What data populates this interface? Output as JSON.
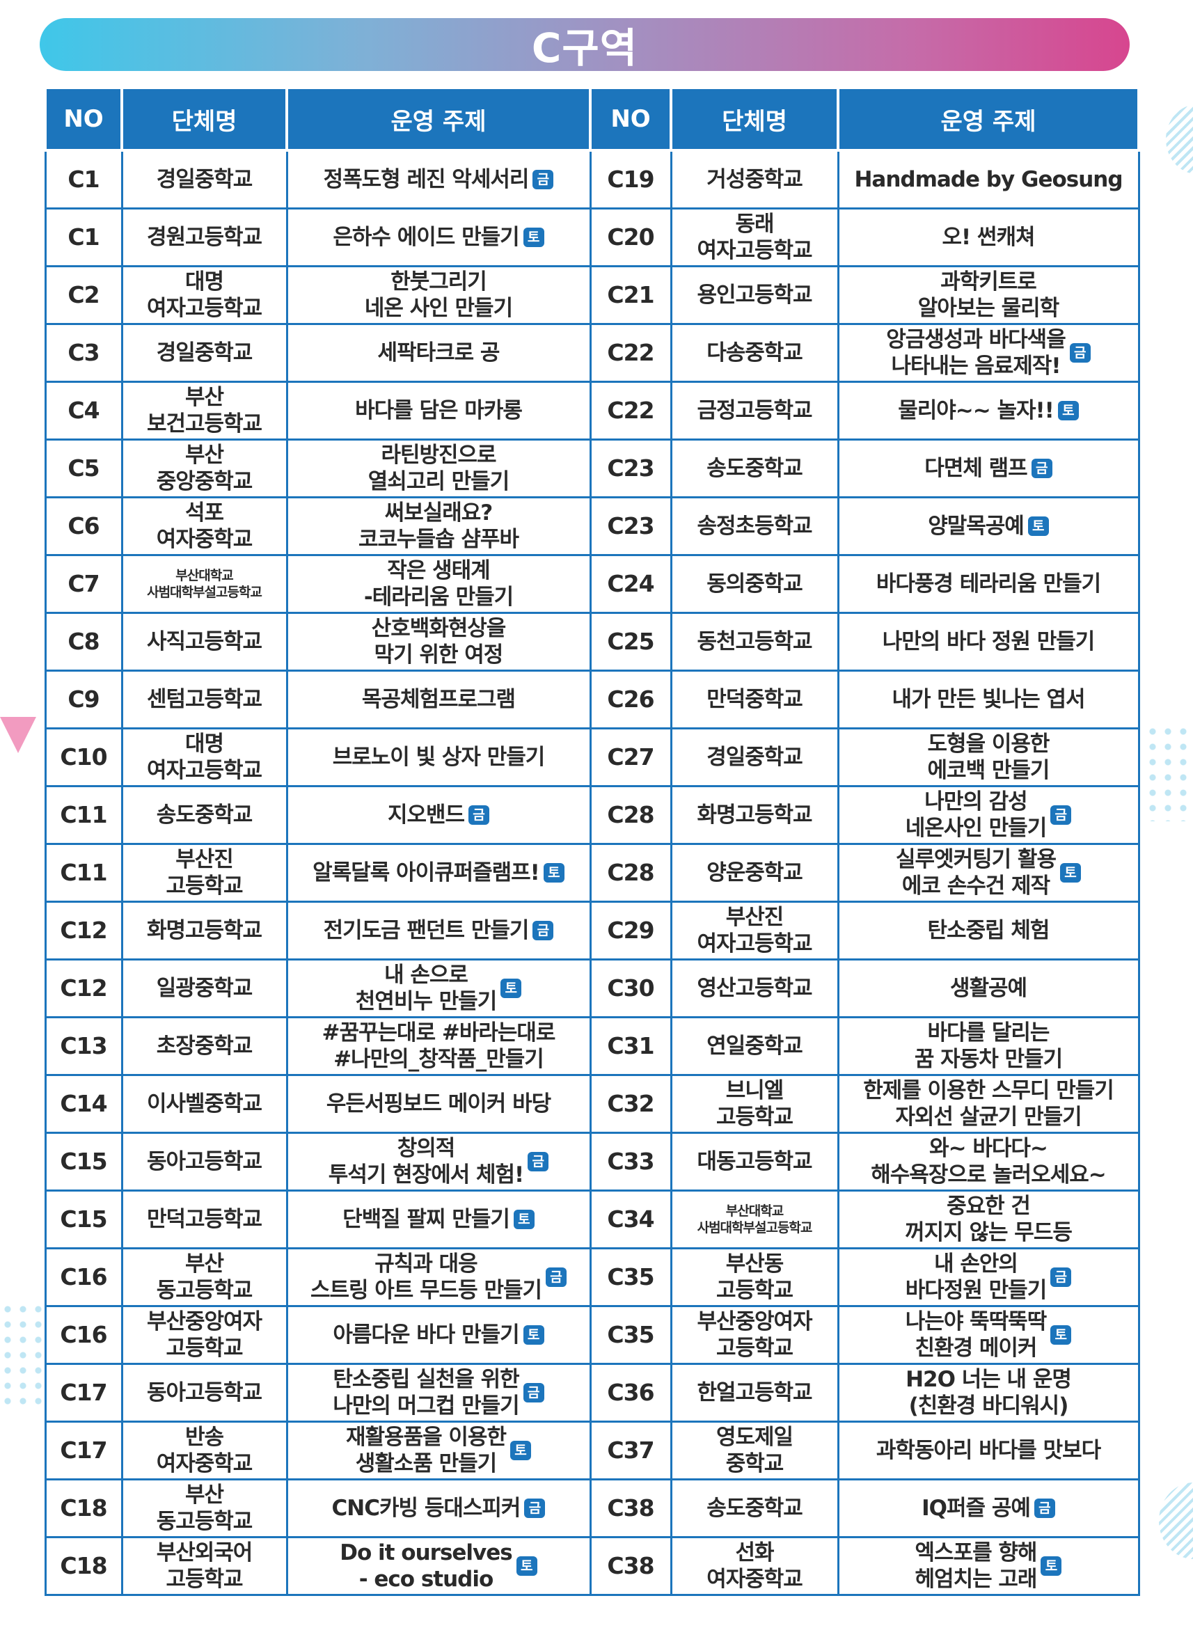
{
  "title": "C구역",
  "headers": {
    "no": "NO",
    "name": "단체명",
    "topic": "운영 주제"
  },
  "colors": {
    "header": "#1c75bc",
    "badge": "#1c75bc",
    "gradient_start": "#3fc7e9",
    "gradient_end": "#d7468f"
  },
  "rows": [
    {
      "left": {
        "no": "C1",
        "name": "경일중학교",
        "topic": "정폭도형 레진 악세서리",
        "badge": "금"
      },
      "right": {
        "no": "C19",
        "name": "거성중학교",
        "topic": "Handmade by Geosung"
      }
    },
    {
      "left": {
        "no": "C1",
        "name": "경원고등학교",
        "topic": "은하수 에이드 만들기",
        "badge": "토"
      },
      "right": {
        "no": "C20",
        "name": "동래\n여자고등학교",
        "topic": "오! 썬캐쳐"
      }
    },
    {
      "left": {
        "no": "C2",
        "name": "대명\n여자고등학교",
        "topic": "한붓그리기\n네온 사인 만들기"
      },
      "right": {
        "no": "C21",
        "name": "용인고등학교",
        "topic": "과학키트로\n알아보는 물리학"
      }
    },
    {
      "left": {
        "no": "C3",
        "name": "경일중학교",
        "topic": "세팍타크로 공"
      },
      "right": {
        "no": "C22",
        "name": "다송중학교",
        "topic": "앙금생성과 바다색을\n나타내는 음료제작!",
        "badge": "금"
      }
    },
    {
      "left": {
        "no": "C4",
        "name": "부산\n보건고등학교",
        "topic": "바다를 담은 마카롱"
      },
      "right": {
        "no": "C22",
        "name": "금정고등학교",
        "topic": "물리야~~ 놀자!!",
        "badge": "토"
      }
    },
    {
      "left": {
        "no": "C5",
        "name": "부산\n중앙중학교",
        "topic": "라틴방진으로\n열쇠고리 만들기"
      },
      "right": {
        "no": "C23",
        "name": "송도중학교",
        "topic": "다면체 램프",
        "badge": "금"
      }
    },
    {
      "left": {
        "no": "C6",
        "name": "석포\n여자중학교",
        "topic": "써보실래요?\n코코누들솝 샴푸바"
      },
      "right": {
        "no": "C23",
        "name": "송정초등학교",
        "topic": "양말목공예",
        "badge": "토"
      }
    },
    {
      "left": {
        "no": "C7",
        "name": "부산대학교\n사범대학부설고등학교",
        "topic": "작은 생태계\n-테라리움 만들기"
      },
      "right": {
        "no": "C24",
        "name": "동의중학교",
        "topic": "바다풍경 테라리움 만들기"
      }
    },
    {
      "left": {
        "no": "C8",
        "name": "사직고등학교",
        "topic": "산호백화현상을\n막기 위한 여정"
      },
      "right": {
        "no": "C25",
        "name": "동천고등학교",
        "topic": "나만의 바다 정원 만들기"
      }
    },
    {
      "left": {
        "no": "C9",
        "name": "센텀고등학교",
        "topic": "목공체험프로그램"
      },
      "right": {
        "no": "C26",
        "name": "만덕중학교",
        "topic": "내가 만든 빛나는 엽서"
      }
    },
    {
      "left": {
        "no": "C10",
        "name": "대명\n여자고등학교",
        "topic": "브로노이 빛 상자 만들기"
      },
      "right": {
        "no": "C27",
        "name": "경일중학교",
        "topic": "도형을 이용한\n에코백 만들기"
      }
    },
    {
      "left": {
        "no": "C11",
        "name": "송도중학교",
        "topic": "지오밴드",
        "badge": "금"
      },
      "right": {
        "no": "C28",
        "name": "화명고등학교",
        "topic": "나만의 감성\n네온사인 만들기",
        "badge": "금"
      }
    },
    {
      "left": {
        "no": "C11",
        "name": "부산진\n고등학교",
        "topic": "알록달록 아이큐퍼즐램프!",
        "badge": "토"
      },
      "right": {
        "no": "C28",
        "name": "양운중학교",
        "topic": "실루엣커팅기 활용\n에코 손수건 제작",
        "badge": "토"
      }
    },
    {
      "left": {
        "no": "C12",
        "name": "화명고등학교",
        "topic": "전기도금 팬던트 만들기",
        "badge": "금"
      },
      "right": {
        "no": "C29",
        "name": "부산진\n여자고등학교",
        "topic": "탄소중립 체험"
      }
    },
    {
      "left": {
        "no": "C12",
        "name": "일광중학교",
        "topic": "내 손으로\n천연비누 만들기",
        "badge": "토"
      },
      "right": {
        "no": "C30",
        "name": "영산고등학교",
        "topic": "생활공예"
      }
    },
    {
      "left": {
        "no": "C13",
        "name": "초장중학교",
        "topic": "#꿈꾸는대로 #바라는대로\n#나만의_창작품_만들기"
      },
      "right": {
        "no": "C31",
        "name": "연일중학교",
        "topic": "바다를 달리는\n꿈 자동차 만들기"
      }
    },
    {
      "left": {
        "no": "C14",
        "name": "이사벨중학교",
        "topic": "우든서핑보드 메이커 바당"
      },
      "right": {
        "no": "C32",
        "name": "브니엘\n고등학교",
        "topic": "한제를 이용한 스무디 만들기\n자외선 살균기 만들기"
      }
    },
    {
      "left": {
        "no": "C15",
        "name": "동아고등학교",
        "topic": "창의적\n투석기 현장에서 체험!",
        "badge": "금"
      },
      "right": {
        "no": "C33",
        "name": "대동고등학교",
        "topic": "와~ 바다다~\n해수욕장으로 놀러오세요~"
      }
    },
    {
      "left": {
        "no": "C15",
        "name": "만덕고등학교",
        "topic": "단백질 팔찌 만들기",
        "badge": "토"
      },
      "right": {
        "no": "C34",
        "name": "부산대학교\n사범대학부설고등학교",
        "topic": "중요한 건\n꺼지지 않는 무드등"
      }
    },
    {
      "left": {
        "no": "C16",
        "name": "부산\n동고등학교",
        "topic": "규칙과 대응\n스트링 아트 무드등 만들기",
        "badge": "금"
      },
      "right": {
        "no": "C35",
        "name": "부산동\n고등학교",
        "topic": "내 손안의\n바다정원 만들기",
        "badge": "금"
      }
    },
    {
      "left": {
        "no": "C16",
        "name": "부산중앙여자\n고등학교",
        "topic": "아름다운 바다 만들기",
        "badge": "토"
      },
      "right": {
        "no": "C35",
        "name": "부산중앙여자\n고등학교",
        "topic": "나는야 뚝딱뚝딱\n친환경 메이커",
        "badge": "토"
      }
    },
    {
      "left": {
        "no": "C17",
        "name": "동아고등학교",
        "topic": "탄소중립 실천을 위한\n나만의 머그컵 만들기",
        "badge": "금"
      },
      "right": {
        "no": "C36",
        "name": "한얼고등학교",
        "topic": "H2O 너는 내 운명\n(친환경 바디워시)"
      }
    },
    {
      "left": {
        "no": "C17",
        "name": "반송\n여자중학교",
        "topic": "재활용품을 이용한\n생활소품 만들기",
        "badge": "토"
      },
      "right": {
        "no": "C37",
        "name": "영도제일\n중학교",
        "topic": "과학동아리 바다를 맛보다"
      }
    },
    {
      "left": {
        "no": "C18",
        "name": "부산\n동고등학교",
        "topic": "CNC카빙 등대스피커",
        "badge": "금"
      },
      "right": {
        "no": "C38",
        "name": "송도중학교",
        "topic": "IQ퍼즐 공예",
        "badge": "금"
      }
    },
    {
      "left": {
        "no": "C18",
        "name": "부산외국어\n고등학교",
        "topic": "Do it ourselves\n- eco studio",
        "badge": "토"
      },
      "right": {
        "no": "C38",
        "name": "선화\n여자중학교",
        "topic": "엑스포를 향해\n헤엄치는 고래",
        "badge": "토"
      }
    }
  ]
}
